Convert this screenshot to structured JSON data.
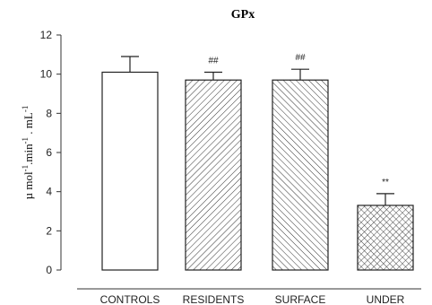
{
  "chart_data": {
    "type": "bar",
    "title": "GPx",
    "xlabel": "",
    "ylabel_parts": [
      {
        "text": "µ mol",
        "sup": false
      },
      {
        "text": "-1",
        "sup": true
      },
      {
        "text": ".min",
        "sup": false
      },
      {
        "text": "-1",
        "sup": true
      },
      {
        "text": " . mL",
        "sup": false
      },
      {
        "text": "-1",
        "sup": true
      }
    ],
    "ylim": [
      0,
      12
    ],
    "yticks": [
      0,
      2,
      4,
      6,
      8,
      10,
      12
    ],
    "grid": false,
    "categories": [
      "CONTROLS",
      "RESIDENTS",
      "SURFACE",
      "UNDER"
    ],
    "values": [
      10.1,
      9.7,
      9.7,
      3.3
    ],
    "error": [
      0.8,
      0.4,
      0.55,
      0.6
    ],
    "annotations": [
      "",
      "##",
      "##",
      "**"
    ],
    "fills": [
      "none",
      "hatch-forward",
      "hatch-back",
      "crosshatch"
    ]
  }
}
